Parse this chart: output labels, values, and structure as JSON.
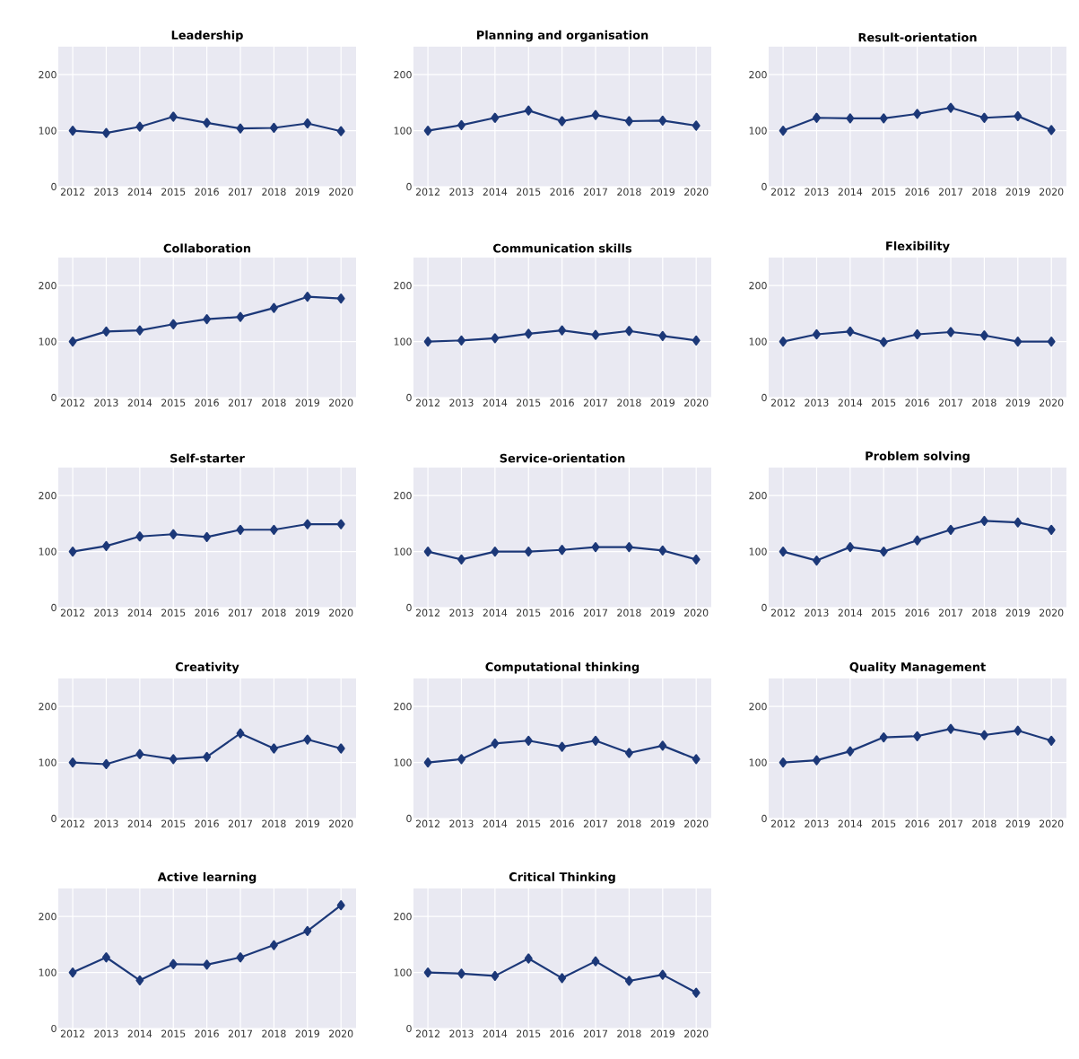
{
  "chart_data": [
    {
      "type": "line",
      "title": "Leadership",
      "categories": [
        "2012",
        "2013",
        "2014",
        "2015",
        "2016",
        "2017",
        "2018",
        "2019",
        "2020"
      ],
      "values": [
        100,
        96,
        107,
        125,
        114,
        104,
        105,
        113,
        99
      ],
      "color": "#1c3878",
      "ylim": [
        0,
        250
      ],
      "yticks": [
        0,
        100,
        200
      ],
      "grid": true,
      "marker": "diamond"
    },
    {
      "type": "line",
      "title": "Planning and organisation",
      "categories": [
        "2012",
        "2013",
        "2014",
        "2015",
        "2016",
        "2017",
        "2018",
        "2019",
        "2020"
      ],
      "values": [
        100,
        110,
        123,
        136,
        117,
        128,
        117,
        118,
        109
      ],
      "color": "#1c3878",
      "ylim": [
        0,
        250
      ],
      "yticks": [
        0,
        100,
        200
      ],
      "grid": true,
      "marker": "diamond"
    },
    {
      "type": "line",
      "title": "Result-orientation",
      "categories": [
        "2012",
        "2013",
        "2014",
        "2015",
        "2016",
        "2017",
        "2018",
        "2019",
        "2020"
      ],
      "values": [
        100,
        123,
        122,
        122,
        130,
        141,
        123,
        126,
        101
      ],
      "color": "#1c3878",
      "ylim": [
        0,
        250
      ],
      "yticks": [
        0,
        100,
        200
      ],
      "grid": true,
      "marker": "diamond"
    },
    {
      "type": "line",
      "title": "Collaboration",
      "categories": [
        "2012",
        "2013",
        "2014",
        "2015",
        "2016",
        "2017",
        "2018",
        "2019",
        "2020"
      ],
      "values": [
        100,
        118,
        120,
        131,
        140,
        144,
        160,
        180,
        177
      ],
      "color": "#1c3878",
      "ylim": [
        0,
        250
      ],
      "yticks": [
        0,
        100,
        200
      ],
      "grid": true,
      "marker": "diamond"
    },
    {
      "type": "line",
      "title": "Communication skills",
      "categories": [
        "2012",
        "2013",
        "2014",
        "2015",
        "2016",
        "2017",
        "2018",
        "2019",
        "2020"
      ],
      "values": [
        100,
        102,
        106,
        114,
        120,
        112,
        119,
        110,
        102
      ],
      "color": "#1c3878",
      "ylim": [
        0,
        250
      ],
      "yticks": [
        0,
        100,
        200
      ],
      "grid": true,
      "marker": "diamond"
    },
    {
      "type": "line",
      "title": "Flexibility",
      "categories": [
        "2012",
        "2013",
        "2014",
        "2015",
        "2016",
        "2017",
        "2018",
        "2019",
        "2020"
      ],
      "values": [
        100,
        113,
        118,
        99,
        113,
        117,
        111,
        100,
        100
      ],
      "color": "#1c3878",
      "ylim": [
        0,
        250
      ],
      "yticks": [
        0,
        100,
        200
      ],
      "grid": true,
      "marker": "diamond"
    },
    {
      "type": "line",
      "title": "Self-starter",
      "categories": [
        "2012",
        "2013",
        "2014",
        "2015",
        "2016",
        "2017",
        "2018",
        "2019",
        "2020"
      ],
      "values": [
        100,
        110,
        127,
        131,
        126,
        139,
        139,
        149,
        149
      ],
      "color": "#1c3878",
      "ylim": [
        0,
        250
      ],
      "yticks": [
        0,
        100,
        200
      ],
      "grid": true,
      "marker": "diamond"
    },
    {
      "type": "line",
      "title": "Service-orientation",
      "categories": [
        "2012",
        "2013",
        "2014",
        "2015",
        "2016",
        "2017",
        "2018",
        "2019",
        "2020"
      ],
      "values": [
        100,
        86,
        100,
        100,
        103,
        108,
        108,
        102,
        86
      ],
      "color": "#1c3878",
      "ylim": [
        0,
        250
      ],
      "yticks": [
        0,
        100,
        200
      ],
      "grid": true,
      "marker": "diamond"
    },
    {
      "type": "line",
      "title": "Problem solving",
      "categories": [
        "2012",
        "2013",
        "2014",
        "2015",
        "2016",
        "2017",
        "2018",
        "2019",
        "2020"
      ],
      "values": [
        100,
        84,
        108,
        100,
        120,
        139,
        155,
        152,
        139
      ],
      "color": "#1c3878",
      "ylim": [
        0,
        250
      ],
      "yticks": [
        0,
        100,
        200
      ],
      "grid": true,
      "marker": "diamond"
    },
    {
      "type": "line",
      "title": "Creativity",
      "categories": [
        "2012",
        "2013",
        "2014",
        "2015",
        "2016",
        "2017",
        "2018",
        "2019",
        "2020"
      ],
      "values": [
        100,
        97,
        115,
        106,
        110,
        152,
        125,
        141,
        125
      ],
      "color": "#1c3878",
      "ylim": [
        0,
        250
      ],
      "yticks": [
        0,
        100,
        200
      ],
      "grid": true,
      "marker": "diamond"
    },
    {
      "type": "line",
      "title": "Computational thinking",
      "categories": [
        "2012",
        "2013",
        "2014",
        "2015",
        "2016",
        "2017",
        "2018",
        "2019",
        "2020"
      ],
      "values": [
        100,
        106,
        134,
        139,
        128,
        139,
        117,
        130,
        106
      ],
      "color": "#1c3878",
      "ylim": [
        0,
        250
      ],
      "yticks": [
        0,
        100,
        200
      ],
      "grid": true,
      "marker": "diamond"
    },
    {
      "type": "line",
      "title": "Quality Management",
      "categories": [
        "2012",
        "2013",
        "2014",
        "2015",
        "2016",
        "2017",
        "2018",
        "2019",
        "2020"
      ],
      "values": [
        100,
        104,
        120,
        145,
        147,
        160,
        149,
        157,
        139
      ],
      "color": "#1c3878",
      "ylim": [
        0,
        250
      ],
      "yticks": [
        0,
        100,
        200
      ],
      "grid": true,
      "marker": "diamond"
    },
    {
      "type": "line",
      "title": "Active learning",
      "categories": [
        "2012",
        "2013",
        "2014",
        "2015",
        "2016",
        "2017",
        "2018",
        "2019",
        "2020"
      ],
      "values": [
        100,
        127,
        86,
        115,
        114,
        127,
        149,
        174,
        220
      ],
      "color": "#1c3878",
      "ylim": [
        0,
        250
      ],
      "yticks": [
        0,
        100,
        200
      ],
      "grid": true,
      "marker": "diamond"
    },
    {
      "type": "line",
      "title": "Critical Thinking",
      "categories": [
        "2012",
        "2013",
        "2014",
        "2015",
        "2016",
        "2017",
        "2018",
        "2019",
        "2020"
      ],
      "values": [
        100,
        98,
        94,
        125,
        90,
        120,
        85,
        96,
        64
      ],
      "color": "#1c3878",
      "ylim": [
        0,
        250
      ],
      "yticks": [
        0,
        100,
        200
      ],
      "grid": true,
      "marker": "diamond"
    }
  ]
}
